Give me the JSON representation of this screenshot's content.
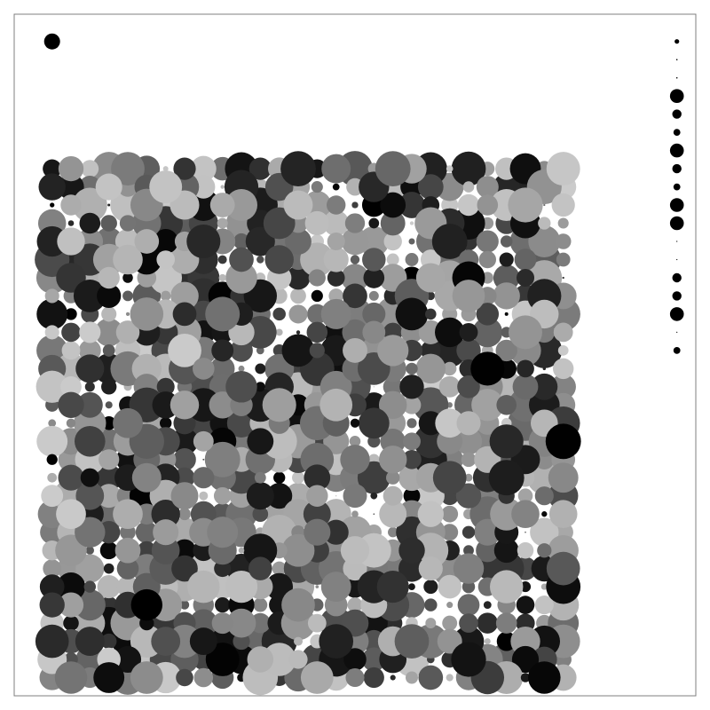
{
  "chart_data": {
    "type": "scatter",
    "title": "",
    "xlabel": "",
    "ylabel": "",
    "grid": false,
    "axes_visible": false,
    "frame": true,
    "colors": {
      "background": "#ffffff",
      "frame": "#7f7f7f",
      "marker_palette": [
        "#000000",
        "#1a1a1a",
        "#333333",
        "#4d4d4d",
        "#666666",
        "#808080",
        "#999999",
        "#b3b3b3",
        "#c8c8c8"
      ]
    },
    "grid_points": {
      "xlim": [
        0,
        28
      ],
      "ylim": [
        0,
        28
      ],
      "x_range": [
        0,
        27
      ],
      "y_range": [
        0,
        28
      ],
      "step": 1,
      "size_range": [
        0,
        36
      ],
      "gray_range": [
        0,
        0.8
      ],
      "generator": "seeded-random",
      "seed": 20240531
    },
    "outlier": {
      "x": 0,
      "y": 35
    },
    "side_column": {
      "x": 33,
      "y_values": [
        35,
        34,
        33,
        32,
        31,
        30,
        29,
        28,
        27,
        26,
        25,
        24,
        23,
        22,
        21,
        20,
        19,
        18
      ],
      "sizes": [
        1,
        0.3,
        0.3,
        3,
        2,
        1.5,
        3,
        2,
        1.5,
        3,
        3,
        0.1,
        0.1,
        2,
        2,
        3,
        0.1,
        1.5
      ]
    },
    "xlim_display": [
      -2,
      34
    ],
    "ylim_display": [
      -1,
      36.5
    ]
  }
}
